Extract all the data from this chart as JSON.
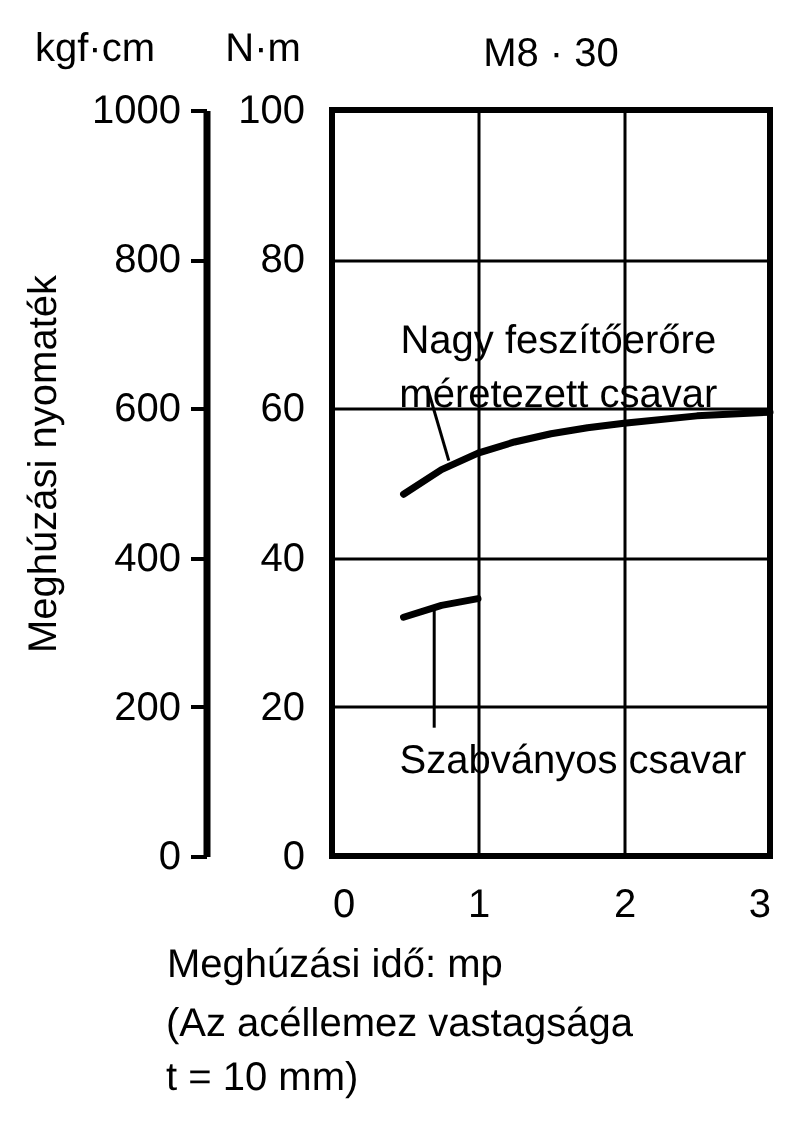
{
  "chart_data": {
    "type": "line",
    "title": "M8 · 30",
    "xlabel": "Meghúzási idő: mp",
    "ylabel": "N·m",
    "y2label": "kgf·cm",
    "xlim": [
      0,
      3
    ],
    "xticks": [
      0,
      1,
      2,
      3
    ],
    "ylim": [
      0,
      100
    ],
    "yticks": [
      0,
      20,
      40,
      60,
      80,
      100
    ],
    "y2lim": [
      0,
      1000
    ],
    "y2ticks": [
      0,
      200,
      400,
      600,
      800,
      1000
    ],
    "grid": true,
    "marker": "none",
    "line_style": "solid",
    "series": [
      {
        "color": "#000000",
        "x": [
          0.49,
          0.75,
          1.0,
          1.25,
          1.5,
          1.75,
          2.0,
          2.5,
          3.0
        ],
        "values": [
          48.5,
          51.8,
          54,
          55.5,
          56.6,
          57.4,
          58,
          59,
          59.5
        ]
      },
      {
        "color": "#000000",
        "x": [
          0.49,
          0.75,
          1.0
        ],
        "values": [
          32,
          33.6,
          34.5
        ]
      }
    ],
    "annotations": [
      {
        "text": "Nagy feszítőerőre\nméretezett csavar",
        "x": 0.8,
        "y": 53
      },
      {
        "text": "Szabványos csavar",
        "x": 0.7,
        "y": 33.2
      },
      "Meghúzási nyomaték",
      "(Az acéllemez vastagsága\nt = 10 mm)"
    ]
  }
}
